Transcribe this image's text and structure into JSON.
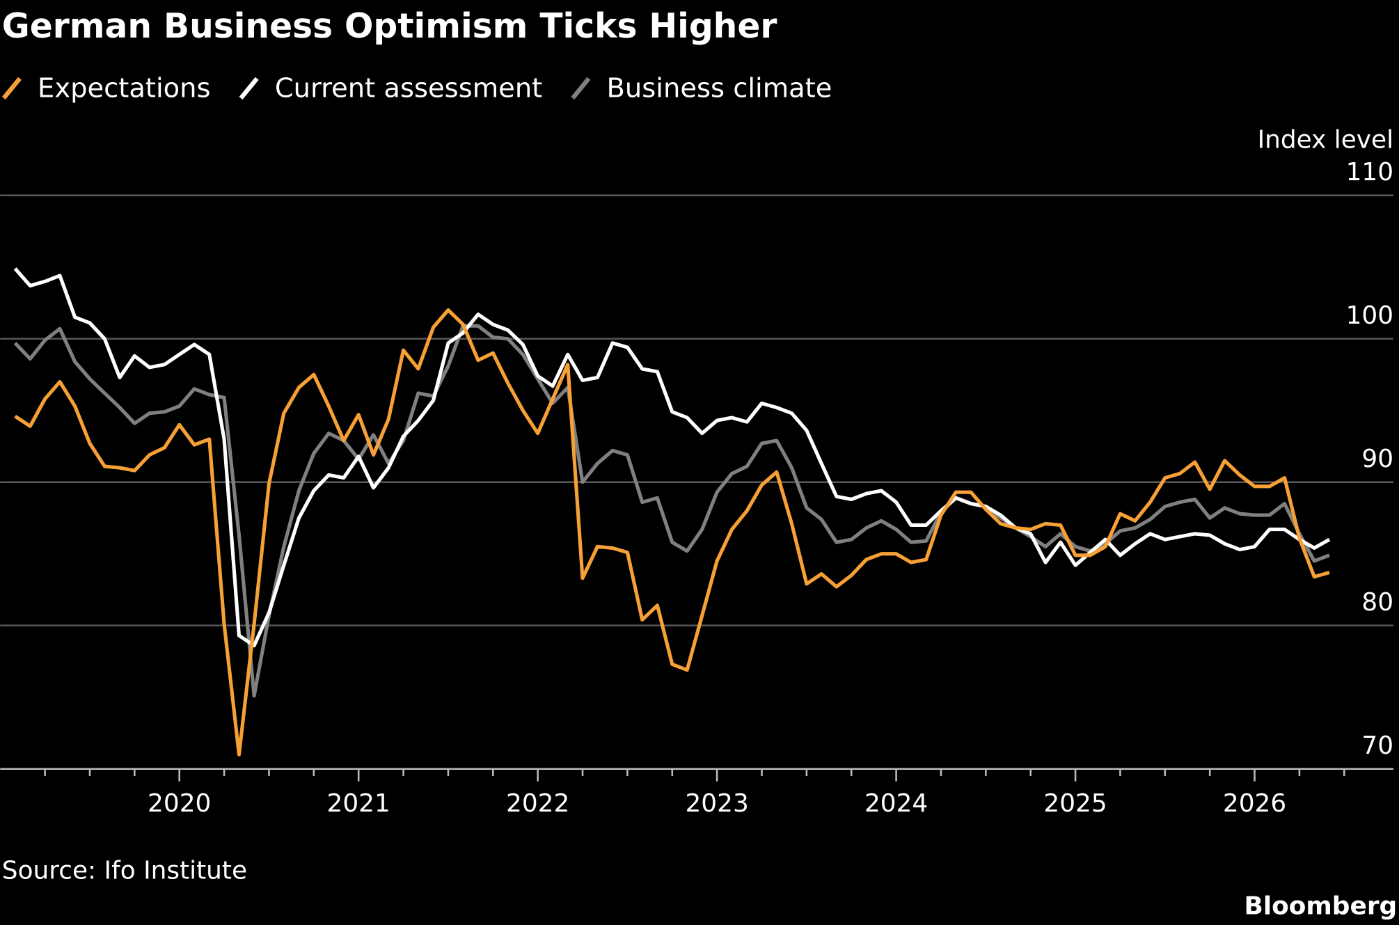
{
  "chart_data": {
    "type": "line",
    "title": "German Business Optimism Ticks Higher",
    "y_label": "Index level",
    "source": "Source: Ifo Institute",
    "credit": "Bloomberg",
    "x": [
      2019.083,
      2019.167,
      2019.25,
      2019.333,
      2019.417,
      2019.5,
      2019.583,
      2019.667,
      2019.75,
      2019.833,
      2019.917,
      2020.0,
      2020.083,
      2020.167,
      2020.25,
      2020.333,
      2020.417,
      2020.5,
      2020.583,
      2020.667,
      2020.75,
      2020.833,
      2020.917,
      2021.0,
      2021.083,
      2021.167,
      2021.25,
      2021.333,
      2021.417,
      2021.5,
      2021.583,
      2021.667,
      2021.75,
      2021.833,
      2021.917,
      2022.0,
      2022.083,
      2022.167,
      2022.25,
      2022.333,
      2022.417,
      2022.5,
      2022.583,
      2022.667,
      2022.75,
      2022.833,
      2022.917,
      2023.0,
      2023.083,
      2023.167,
      2023.25,
      2023.333,
      2023.417,
      2023.5,
      2023.583,
      2023.667,
      2023.75,
      2023.833,
      2023.917,
      2024.0,
      2024.083,
      2024.167,
      2024.25,
      2024.333,
      2024.417,
      2024.5,
      2024.583,
      2024.667,
      2024.75,
      2024.833,
      2024.917,
      2025.0,
      2025.083,
      2025.167,
      2025.25,
      2025.333,
      2025.417,
      2025.5,
      2025.583,
      2025.667,
      2025.75,
      2025.833,
      2025.917,
      2026.0,
      2026.083,
      2026.167,
      2026.25,
      2026.333,
      2026.417
    ],
    "series": [
      {
        "name": "Expectations",
        "color": "#f7a035",
        "values": [
          94.6,
          93.9,
          95.8,
          97.0,
          95.3,
          92.7,
          91.1,
          91.0,
          90.8,
          91.9,
          92.4,
          94.0,
          92.6,
          93.0,
          80.1,
          71.0,
          80.1,
          89.9,
          94.8,
          96.6,
          97.5,
          95.3,
          92.9,
          94.7,
          91.9,
          94.4,
          99.2,
          97.9,
          100.8,
          102.0,
          101.0,
          98.5,
          99.0,
          96.9,
          95.0,
          93.4,
          95.8,
          98.2,
          83.3,
          85.5,
          85.4,
          85.1,
          80.4,
          81.4,
          77.3,
          76.9,
          80.7,
          84.5,
          86.7,
          88.0,
          89.8,
          90.7,
          87.1,
          82.9,
          83.6,
          82.7,
          83.5,
          84.6,
          85.0,
          85.0,
          84.4,
          84.6,
          87.7,
          89.3,
          89.3,
          88.1,
          87.1,
          86.8,
          86.7,
          87.1,
          87.0,
          84.9,
          84.9,
          85.5,
          87.8,
          87.3,
          88.6,
          90.3,
          90.6,
          91.4,
          89.5,
          91.5,
          90.5,
          89.7,
          89.7,
          90.3,
          86.1,
          83.4,
          83.7
        ]
      },
      {
        "name": "Current assessment",
        "color": "#ffffff",
        "values": [
          104.9,
          103.7,
          104.0,
          104.4,
          101.5,
          101.1,
          100.0,
          97.3,
          98.8,
          98.0,
          98.2,
          98.9,
          99.6,
          98.9,
          93.0,
          79.3,
          78.6,
          80.9,
          84.2,
          87.5,
          89.4,
          90.5,
          90.3,
          91.8,
          89.6,
          91.0,
          93.2,
          94.3,
          95.7,
          99.7,
          100.4,
          101.7,
          101.0,
          100.6,
          99.6,
          97.4,
          96.7,
          98.9,
          97.1,
          97.3,
          99.7,
          99.4,
          97.9,
          97.7,
          94.9,
          94.5,
          93.4,
          94.3,
          94.5,
          94.2,
          95.5,
          95.2,
          94.8,
          93.6,
          91.3,
          89.0,
          88.8,
          89.2,
          89.4,
          88.6,
          87.0,
          87.0,
          88.0,
          88.9,
          88.5,
          88.3,
          87.7,
          86.8,
          86.4,
          84.4,
          85.8,
          84.2,
          85.1,
          86.0,
          84.9,
          85.7,
          86.4,
          86.0,
          86.2,
          86.4,
          86.3,
          85.7,
          85.3,
          85.5,
          86.7,
          86.7,
          86.0,
          85.4,
          86.0
        ]
      },
      {
        "name": "Business climate",
        "color": "#808080",
        "values": [
          99.7,
          98.6,
          99.9,
          100.7,
          98.4,
          97.2,
          96.2,
          95.2,
          94.1,
          94.8,
          94.9,
          95.3,
          96.5,
          96.1,
          95.9,
          86.3,
          75.1,
          80.7,
          85.5,
          89.4,
          92.0,
          93.4,
          92.9,
          91.6,
          93.3,
          91.3,
          92.9,
          96.2,
          96.0,
          98.1,
          100.9,
          100.9,
          100.1,
          100.0,
          98.9,
          97.2,
          95.5,
          96.6,
          90.0,
          91.3,
          92.2,
          91.9,
          88.6,
          88.9,
          85.8,
          85.2,
          86.7,
          89.3,
          90.6,
          91.1,
          92.7,
          92.9,
          91.0,
          88.2,
          87.4,
          85.8,
          86.0,
          86.8,
          87.3,
          86.7,
          85.8,
          85.9,
          87.9,
          88.9,
          88.5,
          88.3,
          87.5,
          86.8,
          86.2,
          85.5,
          86.4,
          85.5,
          85.2,
          85.7,
          86.6,
          86.8,
          87.4,
          88.3,
          88.6,
          88.8,
          87.5,
          88.2,
          87.8,
          87.7,
          87.7,
          88.5,
          86.4,
          84.5,
          84.9
        ]
      }
    ],
    "xlim": [
      2019,
      2026.75
    ],
    "xticks": [
      2020,
      2021,
      2022,
      2023,
      2024,
      2025,
      2026
    ],
    "xminorticks": [
      2019.25,
      2019.5,
      2019.75,
      2020.25,
      2020.5,
      2020.75,
      2021.25,
      2021.5,
      2021.75,
      2022.25,
      2022.5,
      2022.75,
      2023.25,
      2023.5,
      2023.75,
      2024.25,
      2024.5,
      2024.75,
      2025.25,
      2025.5,
      2025.75,
      2026.25,
      2026.5
    ],
    "ylim": [
      70,
      110
    ],
    "yticks": [
      70,
      80,
      90,
      100,
      110
    ],
    "grid": true
  }
}
